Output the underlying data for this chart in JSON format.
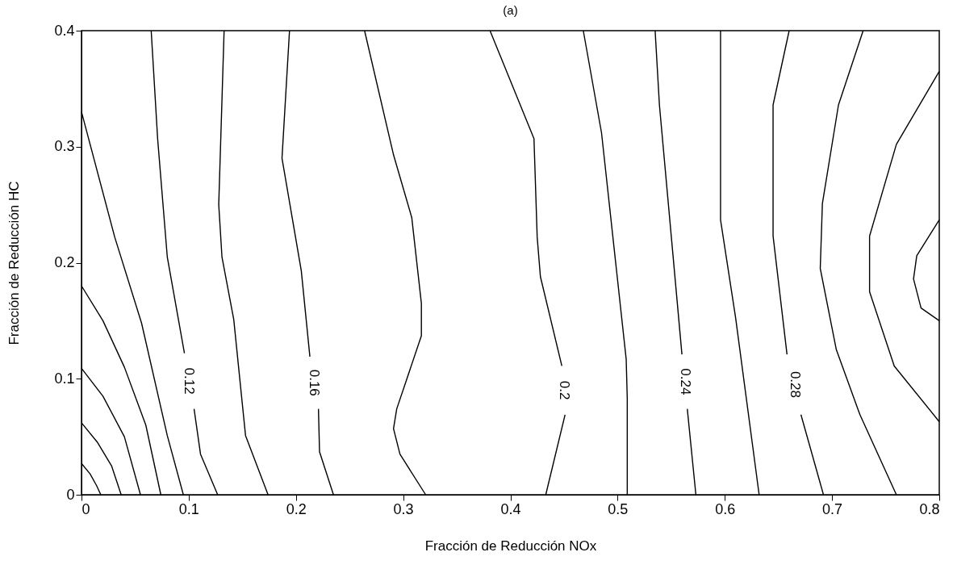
{
  "chart_data": {
    "type": "line",
    "title": "(a)",
    "xlabel": "Fracción de Reducción NOx",
    "ylabel": "Fracción de Reducción HC",
    "xlim": [
      0,
      0.8
    ],
    "ylim": [
      0,
      0.4
    ],
    "xticks": [
      0,
      0.1,
      0.2,
      0.3,
      0.4,
      0.5,
      0.6,
      0.7,
      0.8
    ],
    "yticks": [
      0,
      0.1,
      0.2,
      0.3,
      0.4
    ],
    "grid": false,
    "marker": "none",
    "line_style": "solid",
    "series": [
      {
        "color": "#000000",
        "x": [
          0,
          0.008,
          0.014,
          0.018
        ],
        "values": [
          0.027,
          0.018,
          0.008,
          0
        ]
      },
      {
        "color": "#000000",
        "x": [
          0,
          0.015,
          0.028,
          0.037
        ],
        "values": [
          0.062,
          0.045,
          0.025,
          0
        ]
      },
      {
        "color": "#000000",
        "x": [
          0,
          0.02,
          0.04,
          0.055
        ],
        "values": [
          0.109,
          0.085,
          0.05,
          0
        ]
      },
      {
        "color": "#000000",
        "x": [
          0,
          0.02,
          0.04,
          0.06,
          0.074
        ],
        "values": [
          0.18,
          0.15,
          0.11,
          0.06,
          0
        ]
      },
      {
        "color": "#000000",
        "x": [
          0,
          0.031,
          0.056,
          0.08,
          0.095
        ],
        "values": [
          0.33,
          0.222,
          0.148,
          0.051,
          0
        ]
      },
      {
        "name": "0.12",
        "color": "#000000",
        "x": [
          0.065,
          0.071,
          0.08,
          0.096,
          0.1,
          0.105,
          0.111,
          0.127
        ],
        "values": [
          0.4,
          0.307,
          0.205,
          0.122,
          null,
          0.074,
          0.035,
          0
        ]
      },
      {
        "color": "#000000",
        "x": [
          0.133,
          0.128,
          0.131,
          0.142,
          0.153,
          0.174
        ],
        "values": [
          0.4,
          0.25,
          0.205,
          0.151,
          0.051,
          0
        ]
      },
      {
        "name": "0.16",
        "color": "#000000",
        "x": [
          0.194,
          0.187,
          0.205,
          0.213,
          0.217,
          0.221,
          0.222,
          0.235
        ],
        "values": [
          0.4,
          0.29,
          0.193,
          0.119,
          null,
          0.074,
          0.037,
          0
        ]
      },
      {
        "color": "#000000",
        "x": [
          0.264,
          0.291,
          0.308,
          0.317,
          0.317,
          0.294,
          0.291,
          0.297,
          0.321
        ],
        "values": [
          0.4,
          0.293,
          0.239,
          0.165,
          0.137,
          0.074,
          0.057,
          0.035,
          0
        ]
      },
      {
        "name": "0.2",
        "color": "#000000",
        "x": [
          0.381,
          0.422,
          0.425,
          0.428,
          0.448,
          0.45,
          0.451,
          0.433
        ],
        "values": [
          0.4,
          0.307,
          0.222,
          0.188,
          0.111,
          null,
          0.069,
          0
        ]
      },
      {
        "color": "#000000",
        "x": [
          0.468,
          0.485,
          0.508,
          0.509,
          0.509
        ],
        "values": [
          0.4,
          0.312,
          0.117,
          0.083,
          0
        ]
      },
      {
        "name": "0.24",
        "color": "#000000",
        "x": [
          0.535,
          0.539,
          0.56,
          0.563,
          0.565,
          0.573
        ],
        "values": [
          0.4,
          0.336,
          0.121,
          null,
          0.074,
          0
        ]
      },
      {
        "color": "#000000",
        "x": [
          0.596,
          0.596,
          0.61,
          0.632
        ],
        "values": [
          0.4,
          0.237,
          0.153,
          0
        ]
      },
      {
        "name": "0.28",
        "color": "#000000",
        "x": [
          0.66,
          0.645,
          0.645,
          0.658,
          0.665,
          0.671,
          0.692
        ],
        "values": [
          0.4,
          0.336,
          0.223,
          0.121,
          null,
          0.069,
          0
        ]
      },
      {
        "color": "#000000",
        "x": [
          0.729,
          0.706,
          0.691,
          0.689,
          0.704,
          0.726,
          0.76
        ],
        "values": [
          0.4,
          0.336,
          0.251,
          0.195,
          0.125,
          0.069,
          0
        ]
      },
      {
        "color": "#000000",
        "x": [
          0.8,
          0.76,
          0.735,
          0.735,
          0.758,
          0.8
        ],
        "values": [
          0.365,
          0.302,
          0.223,
          0.175,
          0.111,
          0.063
        ]
      },
      {
        "color": "#000000",
        "x": [
          0.8,
          0.779,
          0.776,
          0.783,
          0.8
        ],
        "values": [
          0.237,
          0.206,
          0.186,
          0.161,
          0.15
        ]
      }
    ]
  }
}
